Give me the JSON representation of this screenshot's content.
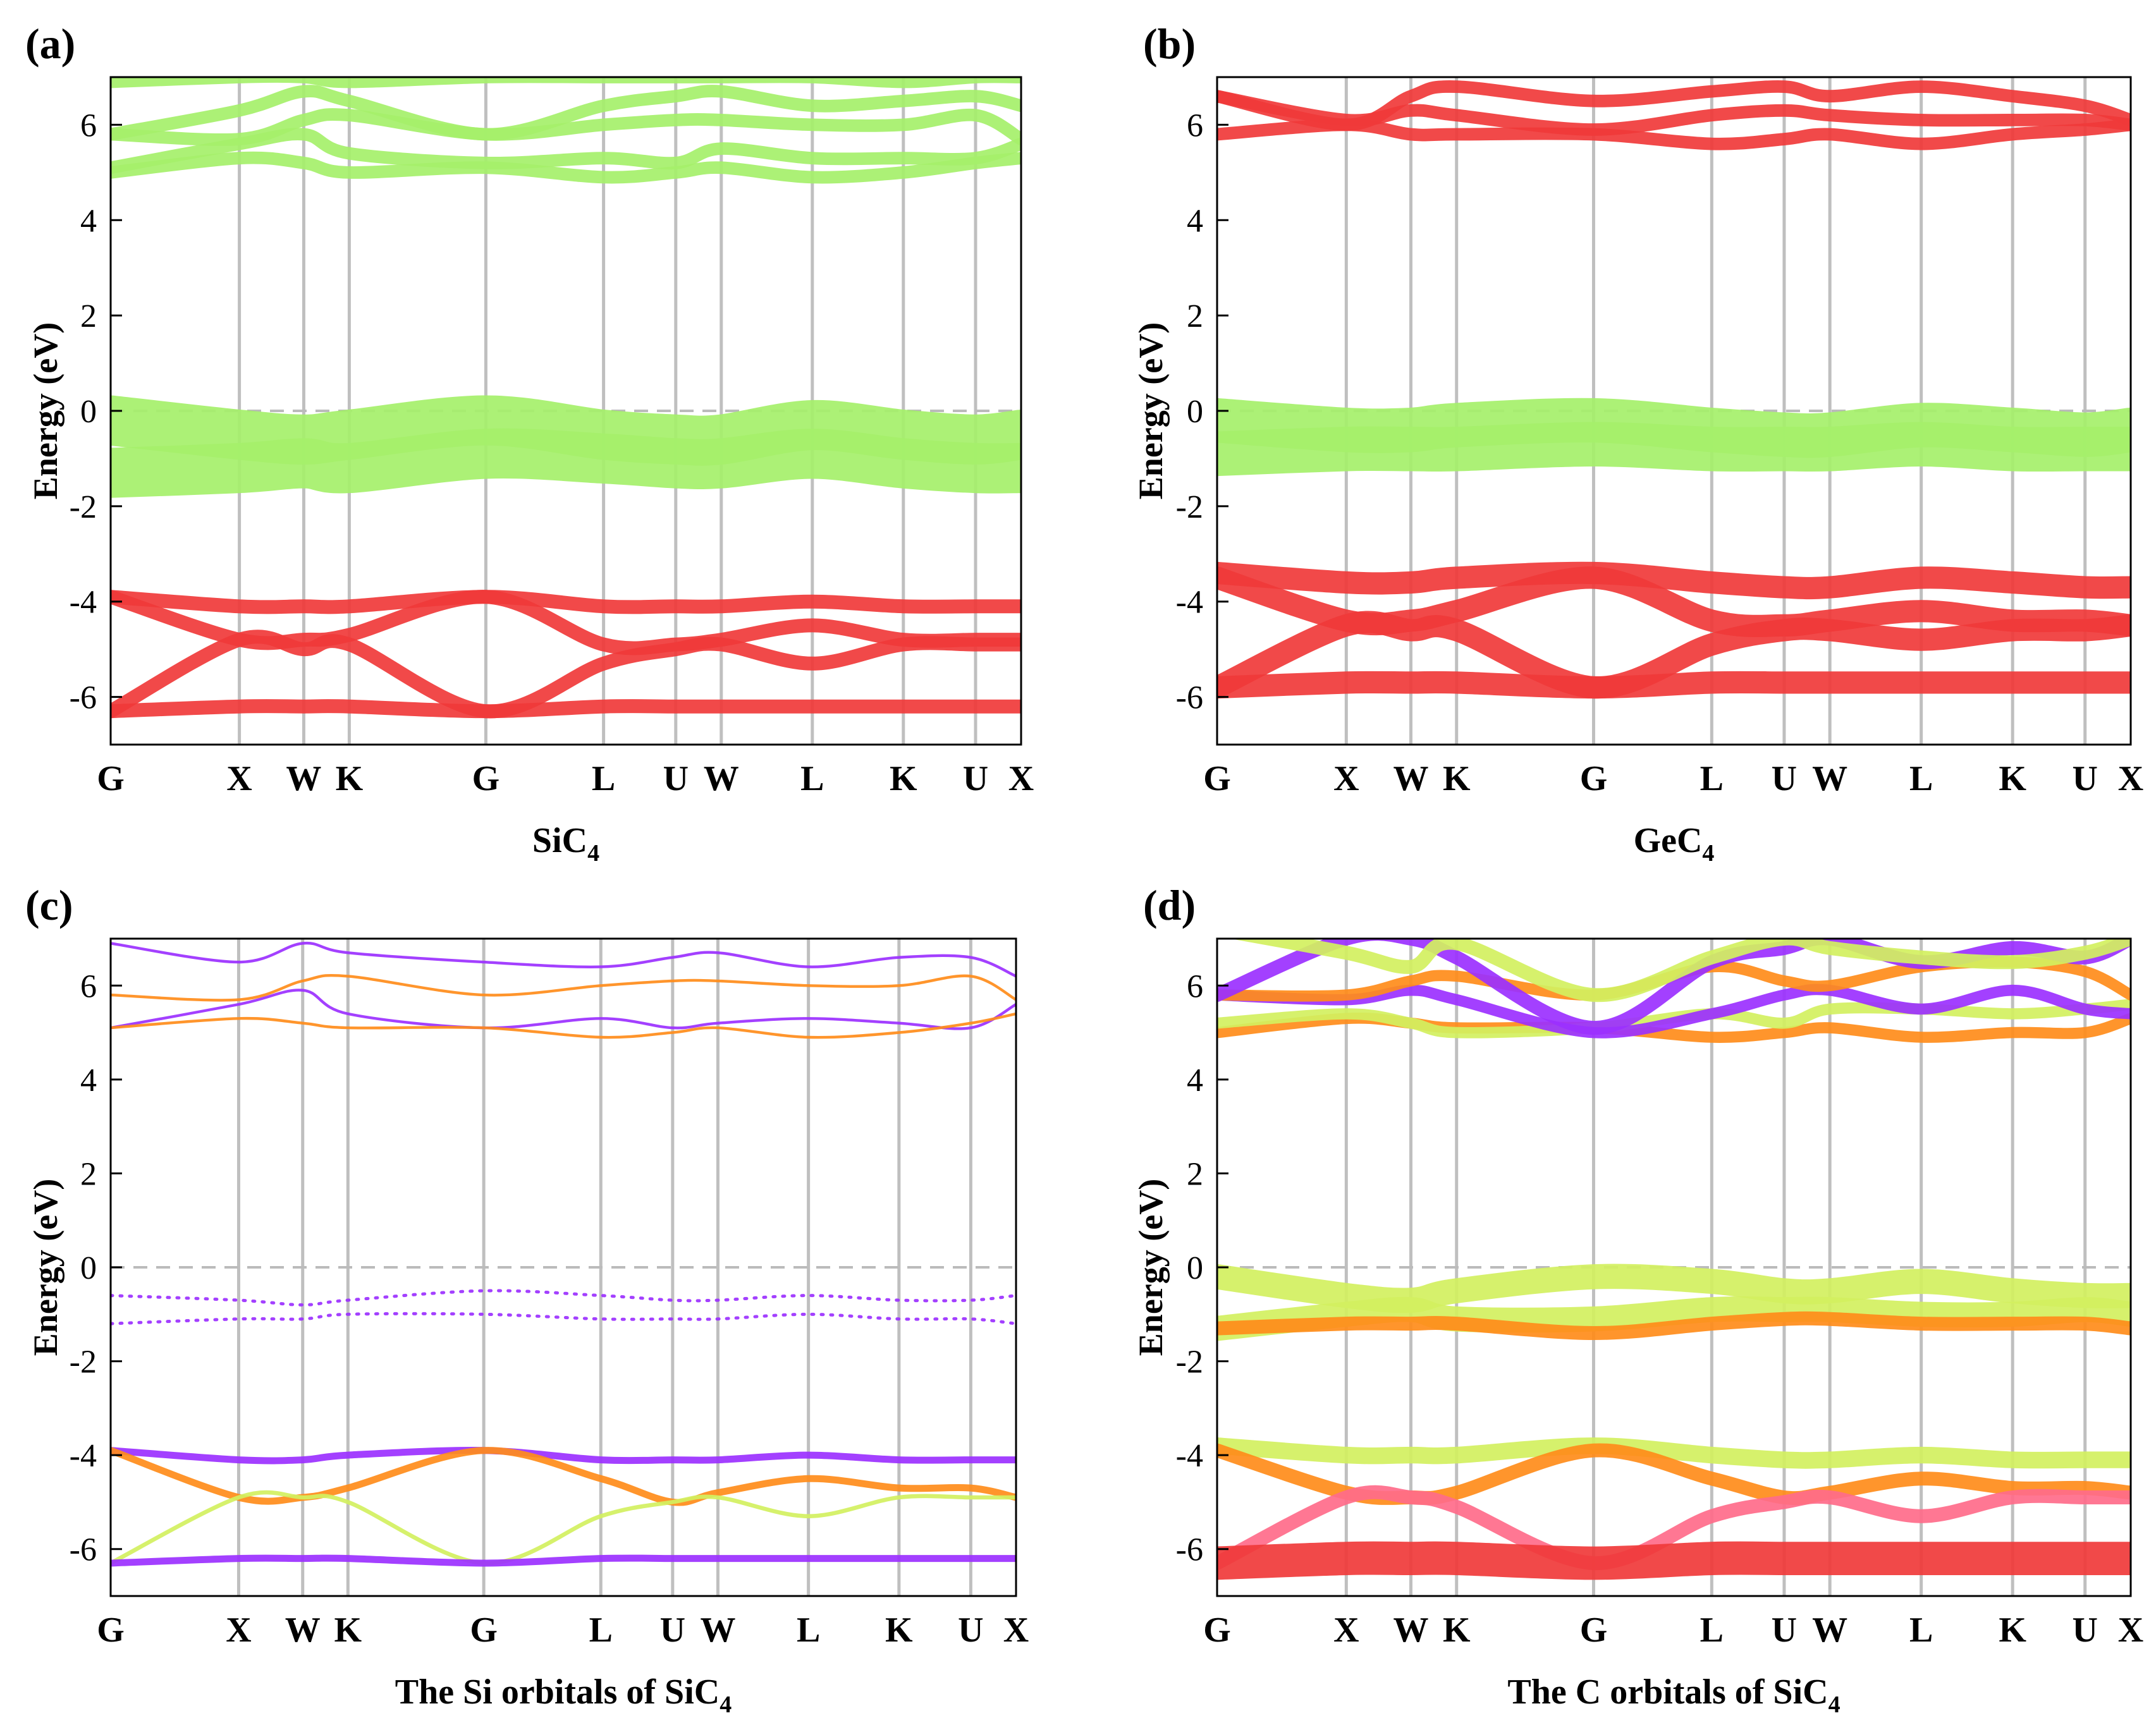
{
  "colors": {
    "green": "#A5F06A",
    "red": "#F03A3A",
    "purple": "#9B30FF",
    "orange": "#FF8C1A",
    "yellowgreen": "#D2F060",
    "pink": "#FF6B8A",
    "vgrid": "#BFBFBF",
    "fermi": "#BBBBBB"
  },
  "chart_data": [
    {
      "type": "line",
      "panel_label": "(a)",
      "xlabel": "SiC",
      "xlabel_sub": "4",
      "ylabel": "Energy (eV)",
      "ylim": [
        -7,
        7
      ],
      "yticks": [
        6,
        4,
        2,
        0,
        -2,
        -4,
        -6
      ],
      "ytick_labels": [
        "6",
        "4",
        "2",
        "0",
        "-2",
        "-4",
        "-6"
      ],
      "kpoints": [
        "G",
        "X",
        "W",
        "K",
        "G",
        "L",
        "U",
        "W",
        "L",
        "K",
        "U",
        "X"
      ],
      "kpos": [
        0,
        0.1414,
        0.2121,
        0.2621,
        0.4121,
        0.5414,
        0.6207,
        0.6707,
        0.7707,
        0.8707,
        0.95,
        1.0
      ],
      "fermi": 0,
      "bands": [
        {
          "name": "c1",
          "color": "green",
          "width": 9,
          "y": [
            5.0,
            5.3,
            5.2,
            5.0,
            5.1,
            4.9,
            5.0,
            5.1,
            4.9,
            5.0,
            5.2,
            5.3
          ]
        },
        {
          "name": "c2",
          "color": "green",
          "width": 9,
          "y": [
            5.1,
            5.6,
            5.8,
            5.4,
            5.2,
            5.3,
            5.2,
            5.5,
            5.3,
            5.3,
            5.3,
            5.6
          ]
        },
        {
          "name": "c3",
          "color": "green",
          "width": 9,
          "y": [
            5.8,
            5.7,
            6.1,
            6.2,
            5.8,
            6.0,
            6.1,
            6.1,
            6.0,
            6.0,
            6.2,
            5.7
          ]
        },
        {
          "name": "c4",
          "color": "green",
          "width": 9,
          "y": [
            5.8,
            6.3,
            6.7,
            6.5,
            5.8,
            6.4,
            6.6,
            6.7,
            6.4,
            6.5,
            6.6,
            6.4
          ]
        },
        {
          "name": "c5",
          "color": "green",
          "width": 9,
          "y": [
            6.9,
            7.0,
            7.0,
            6.9,
            7.0,
            7.0,
            7.0,
            7.0,
            7.0,
            6.9,
            7.0,
            7.0
          ]
        },
        {
          "name": "v1",
          "color": "green",
          "width": 36,
          "y": [
            -0.2,
            -0.5,
            -0.6,
            -0.5,
            -0.2,
            -0.5,
            -0.6,
            -0.6,
            -0.3,
            -0.5,
            -0.6,
            -0.5
          ]
        },
        {
          "name": "v2",
          "color": "green",
          "width": 36,
          "y": [
            -1.3,
            -1.2,
            -1.1,
            -1.2,
            -0.9,
            -1.0,
            -1.1,
            -1.1,
            -0.9,
            -1.1,
            -1.2,
            -1.2
          ]
        },
        {
          "name": "cb1",
          "color": "red",
          "width": 10,
          "y": [
            -3.9,
            -4.1,
            -4.1,
            -4.1,
            -3.9,
            -4.1,
            -4.1,
            -4.1,
            -4.0,
            -4.1,
            -4.1,
            -4.1
          ]
        },
        {
          "name": "cb2",
          "color": "red",
          "width": 10,
          "y": [
            -3.9,
            -4.8,
            -4.8,
            -4.7,
            -3.9,
            -4.9,
            -4.9,
            -4.8,
            -4.5,
            -4.8,
            -4.8,
            -4.8
          ]
        },
        {
          "name": "cb3",
          "color": "red",
          "width": 10,
          "y": [
            -6.3,
            -4.8,
            -5.0,
            -4.9,
            -6.3,
            -5.3,
            -5.0,
            -4.9,
            -5.3,
            -4.9,
            -4.9,
            -4.9
          ]
        },
        {
          "name": "cb4",
          "color": "red",
          "width": 10,
          "y": [
            -6.3,
            -6.2,
            -6.2,
            -6.2,
            -6.3,
            -6.2,
            -6.2,
            -6.2,
            -6.2,
            -6.2,
            -6.2,
            -6.2
          ]
        }
      ]
    },
    {
      "type": "line",
      "panel_label": "(b)",
      "xlabel": "GeC",
      "xlabel_sub": "4",
      "ylabel": "Energy (eV)",
      "ylim": [
        -7,
        7
      ],
      "yticks": [
        6,
        4,
        2,
        0,
        -2,
        -4,
        -6
      ],
      "ytick_labels": [
        "6",
        "4",
        "2",
        "0",
        "-2",
        "-4",
        "-6"
      ],
      "kpoints": [
        "G",
        "X",
        "W",
        "K",
        "G",
        "L",
        "U",
        "W",
        "L",
        "K",
        "U",
        "X"
      ],
      "kpos": [
        0,
        0.1414,
        0.2121,
        0.2621,
        0.4121,
        0.5414,
        0.6207,
        0.6707,
        0.7707,
        0.8707,
        0.95,
        1.0
      ],
      "fermi": 0,
      "bands": [
        {
          "name": "c1",
          "color": "red",
          "width": 9,
          "y": [
            5.8,
            6.0,
            5.8,
            5.8,
            5.8,
            5.6,
            5.7,
            5.8,
            5.6,
            5.8,
            5.9,
            6.0
          ]
        },
        {
          "name": "c2",
          "color": "red",
          "width": 9,
          "y": [
            6.6,
            6.1,
            6.3,
            6.2,
            5.9,
            6.2,
            6.3,
            6.2,
            6.1,
            6.1,
            6.1,
            6.0
          ]
        },
        {
          "name": "c3",
          "color": "red",
          "width": 9,
          "y": [
            6.6,
            6.0,
            6.6,
            6.8,
            6.5,
            6.7,
            6.8,
            6.6,
            6.8,
            6.6,
            6.4,
            6.1
          ]
        },
        {
          "name": "v1",
          "color": "green",
          "width": 32,
          "y": [
            -0.2,
            -0.4,
            -0.4,
            -0.3,
            -0.2,
            -0.4,
            -0.5,
            -0.5,
            -0.3,
            -0.4,
            -0.5,
            -0.4
          ]
        },
        {
          "name": "v2",
          "color": "green",
          "width": 32,
          "y": [
            -0.9,
            -0.8,
            -0.8,
            -0.8,
            -0.7,
            -0.8,
            -0.8,
            -0.8,
            -0.7,
            -0.8,
            -0.8,
            -0.8
          ]
        },
        {
          "name": "cb1",
          "color": "red",
          "width": 16,
          "y": [
            -3.4,
            -3.6,
            -3.6,
            -3.5,
            -3.4,
            -3.6,
            -3.7,
            -3.7,
            -3.5,
            -3.6,
            -3.7,
            -3.7
          ]
        },
        {
          "name": "cb2",
          "color": "red",
          "width": 16,
          "y": [
            -3.5,
            -4.4,
            -4.4,
            -4.2,
            -3.5,
            -4.4,
            -4.5,
            -4.4,
            -4.2,
            -4.4,
            -4.4,
            -4.5
          ]
        },
        {
          "name": "cb3",
          "color": "red",
          "width": 16,
          "y": [
            -5.8,
            -4.5,
            -4.6,
            -4.6,
            -5.8,
            -4.9,
            -4.6,
            -4.6,
            -4.8,
            -4.6,
            -4.6,
            -4.5
          ]
        },
        {
          "name": "cb4",
          "color": "red",
          "width": 16,
          "y": [
            -5.8,
            -5.7,
            -5.7,
            -5.7,
            -5.8,
            -5.7,
            -5.7,
            -5.7,
            -5.7,
            -5.7,
            -5.7,
            -5.7
          ]
        }
      ]
    },
    {
      "type": "line",
      "panel_label": "(c)",
      "xlabel": "The Si orbitals of SiC",
      "xlabel_sub": "4",
      "ylabel": "Energy (eV)",
      "ylim": [
        -7,
        7
      ],
      "yticks": [
        6,
        4,
        2,
        0,
        -2,
        -4,
        -6
      ],
      "ytick_labels": [
        "6",
        "4",
        "2",
        "0",
        "-2",
        "-4",
        "-6"
      ],
      "kpoints": [
        "G",
        "X",
        "W",
        "K",
        "G",
        "L",
        "U",
        "W",
        "L",
        "K",
        "U",
        "X"
      ],
      "kpos": [
        0,
        0.1414,
        0.2121,
        0.2621,
        0.4121,
        0.5414,
        0.6207,
        0.6707,
        0.7707,
        0.8707,
        0.95,
        1.0
      ],
      "fermi": 0,
      "bands": [
        {
          "name": "c1",
          "color": "purple",
          "width": 2,
          "y": [
            5.1,
            5.6,
            5.9,
            5.4,
            5.1,
            5.3,
            5.1,
            5.2,
            5.3,
            5.2,
            5.1,
            5.6
          ]
        },
        {
          "name": "c2",
          "color": "orange",
          "width": 2,
          "y": [
            5.1,
            5.3,
            5.2,
            5.1,
            5.1,
            4.9,
            5.0,
            5.1,
            4.9,
            5.0,
            5.2,
            5.4
          ]
        },
        {
          "name": "c3",
          "color": "orange",
          "width": 2,
          "y": [
            5.8,
            5.7,
            6.1,
            6.2,
            5.8,
            6.0,
            6.1,
            6.1,
            6.0,
            6.0,
            6.2,
            5.7
          ]
        },
        {
          "name": "c4",
          "color": "purple",
          "width": 2,
          "y": [
            6.9,
            6.5,
            6.9,
            6.7,
            6.5,
            6.4,
            6.6,
            6.7,
            6.4,
            6.6,
            6.6,
            6.2
          ]
        },
        {
          "name": "v1",
          "color": "purple",
          "width": 2,
          "dotted": true,
          "y": [
            -0.6,
            -0.7,
            -0.8,
            -0.7,
            -0.5,
            -0.6,
            -0.7,
            -0.7,
            -0.6,
            -0.7,
            -0.7,
            -0.6
          ]
        },
        {
          "name": "v2",
          "color": "purple",
          "width": 2,
          "dotted": true,
          "y": [
            -1.2,
            -1.1,
            -1.1,
            -1.0,
            -1.0,
            -1.1,
            -1.1,
            -1.1,
            -1.0,
            -1.1,
            -1.1,
            -1.2
          ]
        },
        {
          "name": "cb1",
          "color": "purple",
          "width": 5,
          "y": [
            -3.9,
            -4.1,
            -4.1,
            -4.0,
            -3.9,
            -4.1,
            -4.1,
            -4.1,
            -4.0,
            -4.1,
            -4.1,
            -4.1
          ]
        },
        {
          "name": "cb2",
          "color": "orange",
          "width": 5,
          "y": [
            -3.9,
            -4.9,
            -4.9,
            -4.7,
            -3.9,
            -4.5,
            -5.0,
            -4.8,
            -4.5,
            -4.7,
            -4.7,
            -4.9
          ]
        },
        {
          "name": "cb3",
          "color": "yellowgreen",
          "width": 3,
          "y": [
            -6.3,
            -4.9,
            -4.9,
            -5.0,
            -6.3,
            -5.3,
            -5.0,
            -4.9,
            -5.3,
            -4.9,
            -4.9,
            -4.9
          ]
        },
        {
          "name": "cb4",
          "color": "purple",
          "width": 5,
          "y": [
            -6.3,
            -6.2,
            -6.2,
            -6.2,
            -6.3,
            -6.2,
            -6.2,
            -6.2,
            -6.2,
            -6.2,
            -6.2,
            -6.2
          ]
        }
      ]
    },
    {
      "type": "line",
      "panel_label": "(d)",
      "xlabel": "The C orbitals of SiC",
      "xlabel_sub": "4",
      "ylabel": "Energy (eV)",
      "ylim": [
        -7,
        7
      ],
      "yticks": [
        6,
        4,
        2,
        0,
        -2,
        -4,
        -6
      ],
      "ytick_labels": [
        "6",
        "4",
        "2",
        "0",
        "-2",
        "-4",
        "-6"
      ],
      "kpoints": [
        "G",
        "X",
        "W",
        "K",
        "G",
        "L",
        "U",
        "W",
        "L",
        "K",
        "U",
        "X"
      ],
      "kpos": [
        0,
        0.1414,
        0.2121,
        0.2621,
        0.4121,
        0.5414,
        0.6207,
        0.6707,
        0.7707,
        0.8707,
        0.95,
        1.0
      ],
      "fermi": 0,
      "bands": [
        {
          "name": "c1",
          "color": "orange",
          "width": 8,
          "y": [
            5.0,
            5.3,
            5.2,
            5.1,
            5.1,
            4.9,
            5.0,
            5.1,
            4.9,
            5.0,
            5.0,
            5.3
          ]
        },
        {
          "name": "c2",
          "color": "yellowgreen",
          "width": 8,
          "y": [
            5.2,
            5.4,
            5.2,
            5.0,
            5.1,
            5.4,
            5.2,
            5.5,
            5.5,
            5.4,
            5.5,
            5.6
          ]
        },
        {
          "name": "c3",
          "color": "purple",
          "width": 8,
          "y": [
            5.8,
            5.7,
            5.9,
            5.7,
            5.0,
            5.4,
            5.8,
            5.9,
            5.5,
            5.9,
            5.5,
            5.4
          ]
        },
        {
          "name": "c4",
          "color": "orange",
          "width": 8,
          "y": [
            5.8,
            5.8,
            6.1,
            6.2,
            5.8,
            6.4,
            6.1,
            6.0,
            6.4,
            6.5,
            6.3,
            5.8
          ]
        },
        {
          "name": "c5",
          "color": "purple",
          "width": 10,
          "y": [
            5.8,
            7.0,
            7.0,
            6.6,
            5.1,
            6.5,
            6.8,
            7.0,
            6.5,
            6.8,
            6.6,
            7.0
          ]
        },
        {
          "name": "c6",
          "color": "yellowgreen",
          "width": 10,
          "y": [
            7.2,
            6.7,
            6.4,
            6.9,
            5.8,
            6.6,
            7.0,
            6.8,
            6.6,
            6.5,
            6.7,
            7.0
          ]
        },
        {
          "name": "v1",
          "color": "yellowgreen",
          "width": 18,
          "y": [
            -0.2,
            -0.6,
            -0.7,
            -0.5,
            -0.2,
            -0.3,
            -0.5,
            -0.5,
            -0.3,
            -0.5,
            -0.6,
            -0.6
          ]
        },
        {
          "name": "v2",
          "color": "yellowgreen",
          "width": 18,
          "y": [
            -1.3,
            -1.0,
            -0.9,
            -1.1,
            -1.1,
            -0.9,
            -0.9,
            -0.9,
            -1.0,
            -1.0,
            -0.9,
            -1.0
          ]
        },
        {
          "name": "v3",
          "color": "orange",
          "width": 10,
          "y": [
            -1.3,
            -1.2,
            -1.2,
            -1.2,
            -1.4,
            -1.2,
            -1.1,
            -1.1,
            -1.2,
            -1.2,
            -1.2,
            -1.3
          ]
        },
        {
          "name": "cb1",
          "color": "yellowgreen",
          "width": 12,
          "y": [
            -3.8,
            -4.0,
            -4.0,
            -4.0,
            -3.8,
            -4.0,
            -4.1,
            -4.1,
            -4.0,
            -4.1,
            -4.1,
            -4.1
          ]
        },
        {
          "name": "cb2",
          "color": "orange",
          "width": 10,
          "y": [
            -3.9,
            -4.8,
            -4.9,
            -4.8,
            -3.9,
            -4.5,
            -4.9,
            -4.8,
            -4.5,
            -4.7,
            -4.7,
            -4.8
          ]
        },
        {
          "name": "cb3",
          "color": "pink",
          "width": 10,
          "y": [
            -6.3,
            -4.9,
            -4.9,
            -5.1,
            -6.3,
            -5.3,
            -5.0,
            -4.9,
            -5.3,
            -4.9,
            -4.9,
            -4.9
          ]
        },
        {
          "name": "cb4",
          "color": "red",
          "width": 24,
          "y": [
            -6.3,
            -6.2,
            -6.2,
            -6.2,
            -6.3,
            -6.2,
            -6.2,
            -6.2,
            -6.2,
            -6.2,
            -6.2,
            -6.2
          ]
        }
      ]
    }
  ]
}
